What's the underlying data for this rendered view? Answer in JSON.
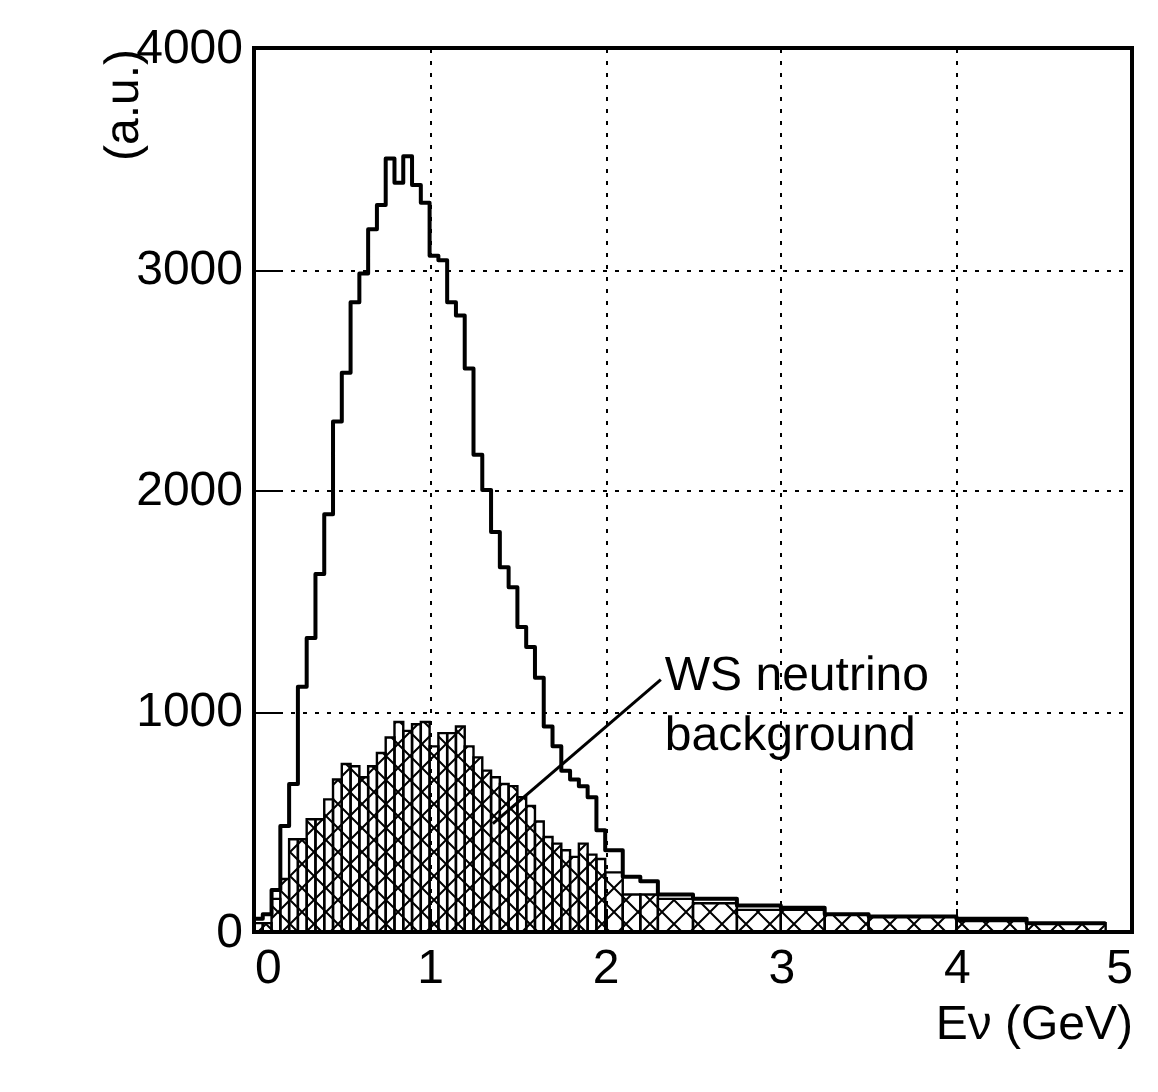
{
  "chart_data": {
    "type": "histogram",
    "xlabel": "Eν (GeV)",
    "ylabel": "(a.u.)",
    "bins": [
      0,
      0.05,
      0.1,
      0.15,
      0.2,
      0.25,
      0.3,
      0.35,
      0.4,
      0.45,
      0.5,
      0.55,
      0.6,
      0.65,
      0.7,
      0.75,
      0.8,
      0.85,
      0.9,
      0.95,
      1.0,
      1.05,
      1.1,
      1.15,
      1.2,
      1.25,
      1.3,
      1.35,
      1.4,
      1.45,
      1.5,
      1.55,
      1.6,
      1.65,
      1.7,
      1.75,
      1.8,
      1.85,
      1.9,
      1.95,
      2.0,
      2.1,
      2.2,
      2.3,
      2.5,
      2.75,
      3.0,
      3.25,
      3.5,
      4.0,
      4.4,
      4.85
    ],
    "series": [
      {
        "type": "step",
        "color": "#000000",
        "x": [
          0,
          0.05,
          0.1,
          0.15,
          0.2,
          0.25,
          0.3,
          0.35,
          0.4,
          0.45,
          0.5,
          0.55,
          0.6,
          0.65,
          0.7,
          0.75,
          0.8,
          0.85,
          0.9,
          0.95,
          1.0,
          1.05,
          1.1,
          1.15,
          1.2,
          1.25,
          1.3,
          1.35,
          1.4,
          1.45,
          1.5,
          1.55,
          1.6,
          1.65,
          1.7,
          1.75,
          1.8,
          1.85,
          1.9,
          1.95,
          2.0,
          2.1,
          2.2,
          2.3,
          2.5,
          2.75,
          3.0,
          3.25,
          3.5,
          4.0,
          4.4,
          4.85
        ],
        "values": [
          60,
          80,
          190,
          480,
          670,
          1110,
          1330,
          1620,
          1890,
          2310,
          2530,
          2850,
          2980,
          3180,
          3290,
          3500,
          3390,
          3510,
          3380,
          3300,
          3060,
          3040,
          2850,
          2790,
          2550,
          2160,
          2000,
          1810,
          1650,
          1560,
          1380,
          1290,
          1150,
          930,
          840,
          730,
          690,
          660,
          610,
          460,
          370,
          250,
          230,
          170,
          150,
          120,
          110,
          80,
          70,
          60,
          40,
          40
        ]
      },
      {
        "type": "histogram",
        "color": "#000000",
        "values": [
          40,
          40,
          150,
          240,
          420,
          420,
          510,
          510,
          600,
          690,
          760,
          750,
          700,
          750,
          810,
          880,
          950,
          910,
          940,
          950,
          840,
          900,
          900,
          930,
          840,
          790,
          730,
          700,
          670,
          660,
          610,
          570,
          500,
          430,
          400,
          370,
          340,
          400,
          350,
          330,
          270,
          170,
          170,
          150,
          130,
          100,
          100,
          80,
          70,
          50,
          40
        ]
      }
    ],
    "xlim": [
      0,
      5
    ],
    "xticks": [
      0,
      1,
      2,
      3,
      4,
      5
    ],
    "ylim": [
      0,
      4000
    ],
    "yticks": [
      0,
      1000,
      2000,
      3000,
      4000
    ],
    "grid": true,
    "annotations": [
      {
        "text": "WS neutrino\nbackground",
        "x": 1.36,
        "y": 490
      }
    ]
  }
}
